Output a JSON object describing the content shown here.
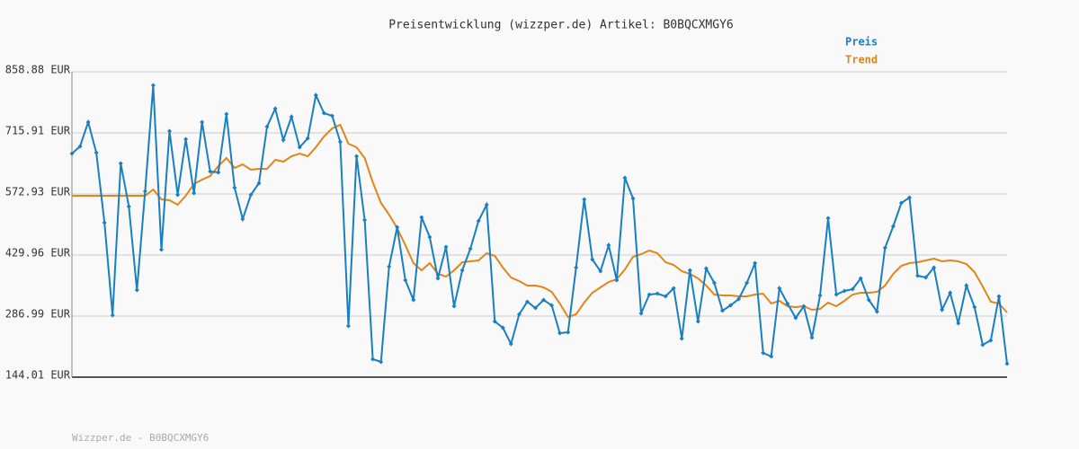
{
  "chart_data": {
    "type": "line",
    "title": "Preisentwicklung (wizzper.de) Artikel: B0BQCXMGY6",
    "footer": "Wizzper.de - B0BQCXMGY6",
    "ylim": [
      144.01,
      858.88
    ],
    "yticks": [
      {
        "value": 144.01,
        "label": "144.01 EUR"
      },
      {
        "value": 286.99,
        "label": "286.99 EUR"
      },
      {
        "value": 429.96,
        "label": "429.96 EUR"
      },
      {
        "value": 572.93,
        "label": "572.93 EUR"
      },
      {
        "value": 715.91,
        "label": "715.91 EUR"
      },
      {
        "value": 858.88,
        "label": "858.88 EUR"
      }
    ],
    "grid": true,
    "legend": "top-right",
    "series": [
      {
        "name": "Preis",
        "color": "#1a7fc0",
        "marker": "diamond",
        "values": [
          667.6,
          684.4,
          741.2,
          669.7,
          505.7,
          289.1,
          644.4,
          543.5,
          348.0,
          579.3,
          827.4,
          442.6,
          720.1,
          570.8,
          701.2,
          575.0,
          741.2,
          625.5,
          623.4,
          760.1,
          587.7,
          514.1,
          570.8,
          598.2,
          730.6,
          772.7,
          699.1,
          753.8,
          682.3,
          703.3,
          804.2,
          762.2,
          755.9,
          694.9,
          263.9,
          661.3,
          512.0,
          186.1,
          179.8,
          402.6,
          495.2,
          371.1,
          324.8,
          518.3,
          472.0,
          375.3,
          448.9,
          310.1,
          394.2,
          444.7,
          509.9,
          547.7,
          274.4,
          259.7,
          221.8,
          291.2,
          320.6,
          305.9,
          324.8,
          312.2,
          247.0,
          249.1,
          400.5,
          560.3,
          419.5,
          392.1,
          453.1,
          371.1,
          610.8,
          562.4,
          293.3,
          337.5,
          339.6,
          333.2,
          352.2,
          234.4,
          394.2,
          274.4,
          398.4,
          364.8,
          299.6,
          312.2,
          326.9,
          364.8,
          411.0,
          200.8,
          192.4,
          352.2,
          316.4,
          282.8,
          310.1,
          236.5,
          335.4,
          516.2,
          337.5,
          345.9,
          350.1,
          375.3,
          324.8,
          297.5,
          446.8,
          497.3,
          551.9,
          564.5,
          381.6,
          377.4,
          400.5,
          301.7,
          341.7,
          270.2,
          358.5,
          308.0,
          219.7,
          230.2,
          333.2,
          175.6
        ]
      },
      {
        "name": "Trend",
        "color": "#e0861a",
        "marker": "none",
        "values": [
          568.7,
          568.7,
          568.7,
          568.7,
          568.7,
          568.7,
          568.7,
          568.7,
          568.7,
          568.7,
          583.5,
          560.3,
          558.2,
          547.7,
          568.7,
          596.1,
          606.6,
          615.0,
          638.1,
          657.1,
          633.9,
          642.3,
          629.7,
          631.8,
          631.8,
          652.8,
          648.6,
          661.3,
          667.6,
          661.3,
          682.3,
          707.5,
          726.4,
          734.8,
          690.7,
          682.3,
          657.1,
          600.3,
          551.9,
          524.6,
          493.0,
          453.1,
          411.0,
          394.2,
          411.0,
          385.8,
          379.5,
          394.2,
          413.1,
          415.3,
          417.4,
          434.2,
          427.9,
          400.5,
          377.4,
          369.0,
          358.5,
          358.5,
          354.3,
          343.8,
          316.4,
          284.9,
          291.2,
          318.5,
          341.7,
          354.3,
          366.9,
          373.2,
          396.3,
          425.8,
          432.1,
          440.5,
          434.2,
          413.1,
          406.8,
          392.1,
          385.8,
          375.3,
          358.5,
          337.5,
          335.4,
          335.4,
          333.2,
          333.2,
          337.5,
          339.6,
          316.4,
          322.7,
          310.1,
          308.0,
          310.1,
          301.7,
          303.8,
          318.5,
          310.1,
          322.7,
          337.5,
          341.7,
          341.7,
          343.8,
          358.5,
          385.8,
          404.7,
          411.0,
          413.1,
          417.4,
          421.6,
          415.3,
          417.4,
          415.3,
          408.9,
          390.0,
          356.4,
          320.6,
          316.4,
          295.4
        ]
      }
    ]
  }
}
